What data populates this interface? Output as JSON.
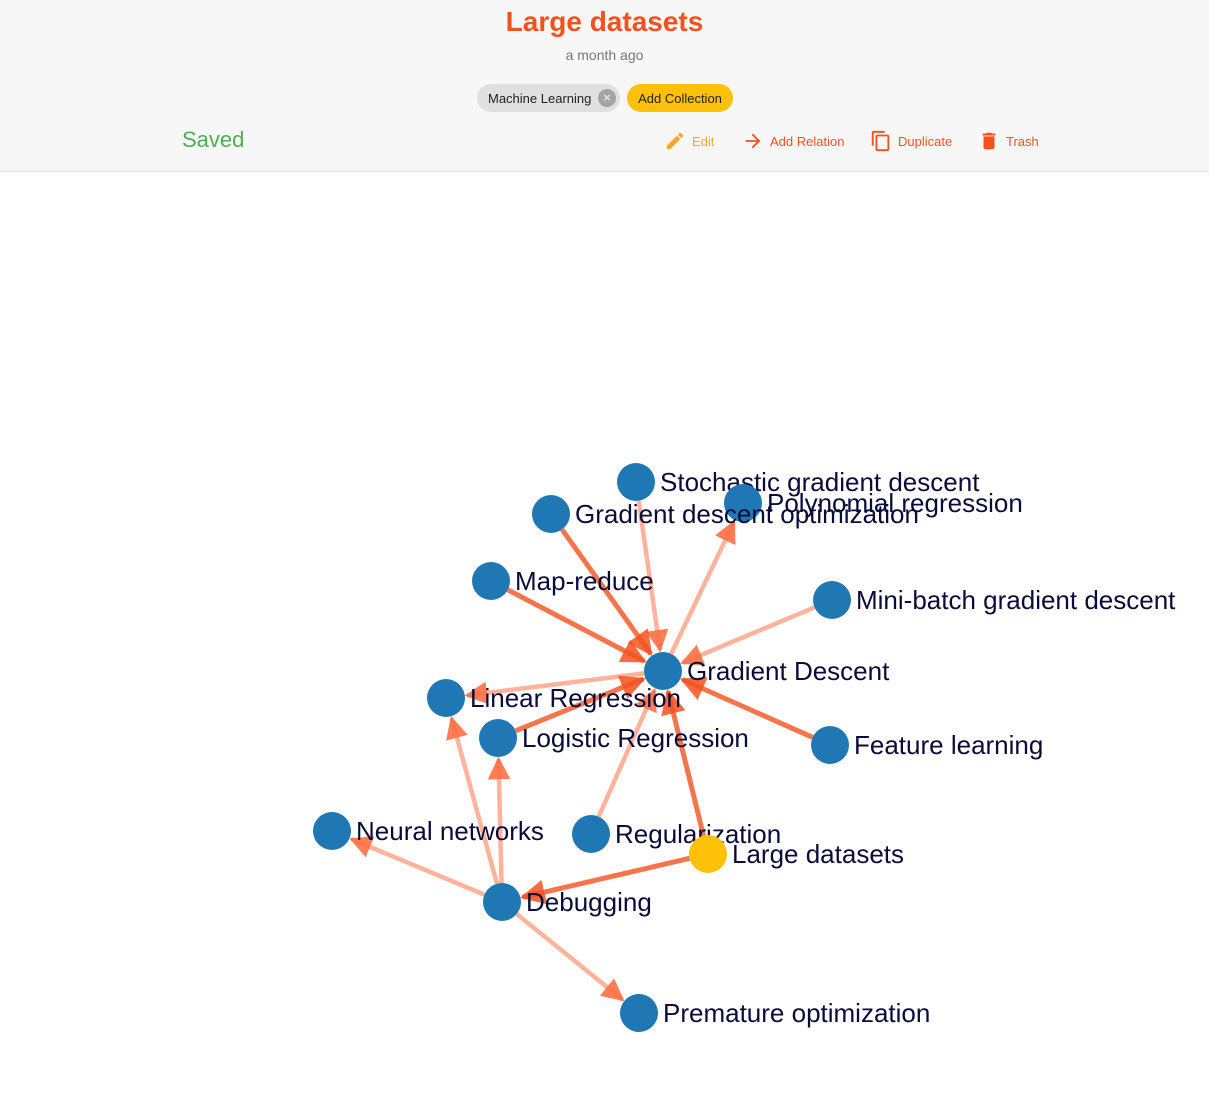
{
  "header": {
    "title": "Large datasets",
    "subtitle": "a month ago",
    "tag": "Machine Learning",
    "tag_remove_icon": "close-circle-icon",
    "add_collection_label": "Add Collection",
    "status": "Saved"
  },
  "actions": {
    "edit": {
      "label": "Edit",
      "icon": "pencil-icon"
    },
    "add_relation": {
      "label": "Add Relation",
      "icon": "arrow-right-icon"
    },
    "duplicate": {
      "label": "Duplicate",
      "icon": "copy-icon"
    },
    "trash": {
      "label": "Trash",
      "icon": "trash-icon"
    }
  },
  "colors": {
    "title": "#f4511e",
    "accent": "#ffc107",
    "node": "#1f77b4",
    "current_node": "#ffc107",
    "edge_strong": "#f4511e",
    "edge_light": "#ff8a65",
    "saved": "#4caf50"
  },
  "graph": {
    "current_node": "large-datasets",
    "nodes": [
      {
        "id": "stochastic-gd",
        "label": "Stochastic gradient descent"
      },
      {
        "id": "polynomial-regression",
        "label": "Polynomial regression"
      },
      {
        "id": "gd-optimization",
        "label": "Gradient descent optimization"
      },
      {
        "id": "map-reduce",
        "label": "Map-reduce"
      },
      {
        "id": "mini-batch-gd",
        "label": "Mini-batch gradient descent"
      },
      {
        "id": "gradient-descent",
        "label": "Gradient Descent"
      },
      {
        "id": "linear-regression",
        "label": "Linear Regression"
      },
      {
        "id": "logistic-regression",
        "label": "Logistic Regression"
      },
      {
        "id": "feature-learning",
        "label": "Feature learning"
      },
      {
        "id": "neural-networks",
        "label": "Neural networks"
      },
      {
        "id": "regularization",
        "label": "Regularization"
      },
      {
        "id": "large-datasets",
        "label": "Large datasets"
      },
      {
        "id": "debugging",
        "label": "Debugging"
      },
      {
        "id": "premature-optimization",
        "label": "Premature optimization"
      }
    ],
    "edges": [
      {
        "from": "stochastic-gd",
        "to": "gradient-descent"
      },
      {
        "from": "gd-optimization",
        "to": "gradient-descent"
      },
      {
        "from": "gradient-descent",
        "to": "polynomial-regression"
      },
      {
        "from": "map-reduce",
        "to": "gradient-descent"
      },
      {
        "from": "mini-batch-gd",
        "to": "gradient-descent"
      },
      {
        "from": "feature-learning",
        "to": "gradient-descent"
      },
      {
        "from": "gradient-descent",
        "to": "linear-regression"
      },
      {
        "from": "logistic-regression",
        "to": "gradient-descent"
      },
      {
        "from": "regularization",
        "to": "gradient-descent"
      },
      {
        "from": "large-datasets",
        "to": "gradient-descent"
      },
      {
        "from": "large-datasets",
        "to": "debugging"
      },
      {
        "from": "debugging",
        "to": "linear-regression"
      },
      {
        "from": "debugging",
        "to": "logistic-regression"
      },
      {
        "from": "debugging",
        "to": "neural-networks"
      },
      {
        "from": "debugging",
        "to": "premature-optimization"
      }
    ]
  }
}
